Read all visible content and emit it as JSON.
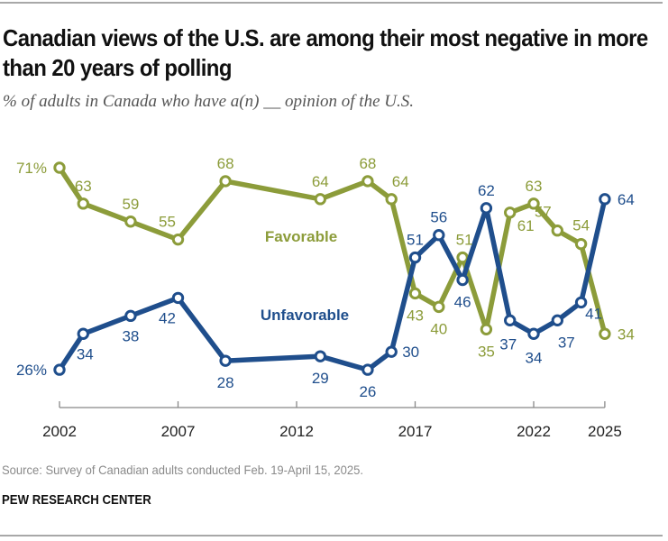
{
  "header": {
    "title": "Canadian views of the U.S. are among their most negative in more than 20 years of polling",
    "subtitle": "% of adults in Canada who have a(n) __ opinion of the U.S."
  },
  "footer": {
    "source": "Source: Survey of Canadian adults conducted Feb. 19-April 15, 2025.",
    "brand": "PEW RESEARCH CENTER"
  },
  "colors": {
    "favorable": "#8c9c3a",
    "unfavorable": "#1f4e8c",
    "axis": "#888888",
    "tick_label": "#222222"
  },
  "chart_data": {
    "type": "line",
    "title": "Canadian views of the U.S. are among their most negative in more than 20 years of polling",
    "subtitle": "% of adults in Canada who have a(n) __ opinion of the U.S.",
    "xlabel": "",
    "ylabel": "",
    "x": [
      2002,
      2003,
      2005,
      2007,
      2009,
      2013,
      2015,
      2016,
      2017,
      2018,
      2019,
      2020,
      2021,
      2022,
      2023,
      2024,
      2025
    ],
    "xlim": [
      2002,
      2025
    ],
    "ylim": [
      20,
      75
    ],
    "x_ticks": [
      "2002",
      "2007",
      "2012",
      "2017",
      "2022",
      "2025"
    ],
    "x_tick_values": [
      2002,
      2007,
      2012,
      2017,
      2022,
      2025
    ],
    "grid": false,
    "legend": "inline labels",
    "series": [
      {
        "name": "Favorable",
        "color": "#8c9c3a",
        "values": [
          71,
          63,
          59,
          55,
          68,
          64,
          68,
          64,
          43,
          40,
          51,
          35,
          61,
          63,
          57,
          54,
          34
        ],
        "labels": [
          "71%",
          "63",
          "59",
          "55",
          "68",
          "64",
          "68",
          "64",
          "43",
          "40",
          "51",
          "35",
          "61",
          "63",
          "57",
          "54",
          "34"
        ]
      },
      {
        "name": "Unfavorable",
        "color": "#1f4e8c",
        "values": [
          26,
          34,
          38,
          42,
          28,
          29,
          26,
          30,
          51,
          56,
          46,
          62,
          37,
          34,
          37,
          41,
          64
        ],
        "labels": [
          "26%",
          "34",
          "38",
          "42",
          "28",
          "29",
          "26",
          "30",
          "51",
          "56",
          "46",
          "62",
          "37",
          "34",
          "37",
          "41",
          "64"
        ]
      }
    ]
  }
}
